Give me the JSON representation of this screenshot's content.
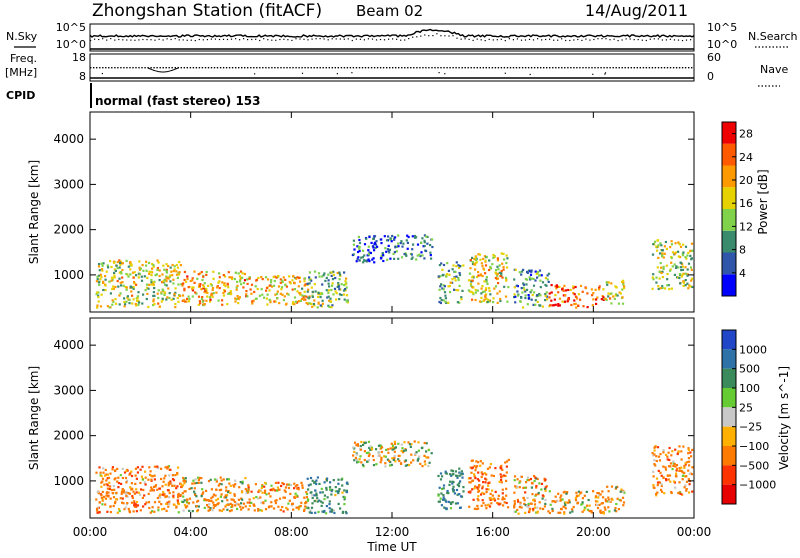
{
  "header": {
    "station": "Zhongshan Station (fitACF)",
    "beam": "Beam 02",
    "date": "14/Aug/2011"
  },
  "noise_panel": {
    "left_label": "N.Sky",
    "left_ticks": [
      "10^5",
      "10^0"
    ],
    "right_label": "N.Search",
    "right_ticks": [
      "10^5",
      "10^0"
    ]
  },
  "freq_panel": {
    "left_label_line1": "Freq.",
    "left_label_line2": "[MHz]",
    "left_ticks": [
      "18",
      "8"
    ],
    "right_label": "Nave",
    "right_ticks": [
      "60",
      "0"
    ]
  },
  "cpid_panel": {
    "label": "CPID",
    "mode_text": "normal (fast stereo) 153"
  },
  "colors": {
    "power_scale": [
      "#0000ff",
      "#2f56a8",
      "#3a8a6e",
      "#7fd24a",
      "#e6d200",
      "#ff9900",
      "#ff5a00",
      "#ee0000"
    ],
    "velocity_scale": [
      "#2146c8",
      "#2f72a8",
      "#3a8a5c",
      "#66cc33",
      "#c8c8c8",
      "#ffb000",
      "#ff7a00",
      "#ff3300",
      "#e60000"
    ],
    "ground_scatter": "#c8c8c8"
  },
  "chart_data": [
    {
      "type": "heatmap",
      "title": "",
      "xlabel": "",
      "ylabel": "Slant Range [km]",
      "x_ticks": [
        "00:00",
        "04:00",
        "08:00",
        "12:00",
        "16:00",
        "20:00",
        "00:00"
      ],
      "xlim_hours": [
        0,
        24
      ],
      "y_ticks": [
        1000,
        2000,
        3000,
        4000
      ],
      "ylim_km": [
        180,
        4600
      ],
      "colorbar_label": "Power [dB]",
      "colorbar_ticks": [
        "4",
        "8",
        "12",
        "16",
        "20",
        "24",
        "28"
      ],
      "colorbar_range": [
        0,
        30
      ],
      "scatter_regions": [
        {
          "t": [
            0.2,
            3.6
          ],
          "r": [
            300,
            1350
          ],
          "v": 16
        },
        {
          "t": [
            3.6,
            6.2
          ],
          "r": [
            350,
            1100
          ],
          "v": 20
        },
        {
          "t": [
            6.2,
            8.6
          ],
          "r": [
            350,
            1000
          ],
          "v": 18
        },
        {
          "t": [
            8.6,
            10.2
          ],
          "r": [
            300,
            1100
          ],
          "v": 13
        },
        {
          "t": [
            10.4,
            11.8
          ],
          "r": [
            1300,
            1900
          ],
          "v": 6
        },
        {
          "t": [
            11.8,
            13.6
          ],
          "r": [
            1350,
            1900
          ],
          "v": 8
        },
        {
          "t": [
            13.8,
            14.8
          ],
          "r": [
            400,
            1300
          ],
          "v": 12
        },
        {
          "t": [
            15.0,
            16.6
          ],
          "r": [
            400,
            1500
          ],
          "v": 17
        },
        {
          "t": [
            16.8,
            18.2
          ],
          "r": [
            300,
            1150
          ],
          "v": 10
        },
        {
          "t": [
            18.2,
            20.4
          ],
          "r": [
            300,
            800
          ],
          "v": 24
        },
        {
          "t": [
            20.4,
            21.2
          ],
          "r": [
            350,
            900
          ],
          "v": 16
        },
        {
          "t": [
            22.3,
            23.9
          ],
          "r": [
            700,
            1800
          ],
          "v": 15
        }
      ]
    },
    {
      "type": "heatmap",
      "title": "",
      "xlabel": "Time UT",
      "ylabel": "Slant Range [km]",
      "x_ticks": [
        "00:00",
        "04:00",
        "08:00",
        "12:00",
        "16:00",
        "20:00",
        "00:00"
      ],
      "xlim_hours": [
        0,
        24
      ],
      "y_ticks": [
        1000,
        2000,
        3000,
        4000
      ],
      "ylim_km": [
        180,
        4600
      ],
      "colorbar_label": "Velocity [m s^-1]",
      "colorbar_ticks": [
        "1000",
        "500",
        "100",
        "25",
        "−25",
        "−100",
        "−500",
        "−1000"
      ],
      "scatter_regions": [
        {
          "t": [
            0.2,
            3.6
          ],
          "r": [
            300,
            1350
          ],
          "v": -300
        },
        {
          "t": [
            3.6,
            6.2
          ],
          "r": [
            350,
            1100
          ],
          "v": -150
        },
        {
          "t": [
            6.2,
            8.6
          ],
          "r": [
            350,
            1000
          ],
          "v": -250
        },
        {
          "t": [
            8.6,
            10.2
          ],
          "r": [
            300,
            1100
          ],
          "v": 300
        },
        {
          "t": [
            10.4,
            11.8
          ],
          "r": [
            1300,
            1900
          ],
          "v": 0
        },
        {
          "t": [
            11.8,
            13.6
          ],
          "r": [
            1350,
            1900
          ],
          "v": 0
        },
        {
          "t": [
            13.8,
            14.8
          ],
          "r": [
            400,
            1300
          ],
          "v": 400
        },
        {
          "t": [
            15.0,
            16.6
          ],
          "r": [
            400,
            1500
          ],
          "v": -400
        },
        {
          "t": [
            16.8,
            18.2
          ],
          "r": [
            300,
            1150
          ],
          "v": -200
        },
        {
          "t": [
            18.2,
            20.4
          ],
          "r": [
            300,
            800
          ],
          "v": -150
        },
        {
          "t": [
            20.4,
            21.2
          ],
          "r": [
            350,
            900
          ],
          "v": -100
        },
        {
          "t": [
            22.3,
            23.9
          ],
          "r": [
            700,
            1800
          ],
          "v": -300
        }
      ]
    }
  ]
}
